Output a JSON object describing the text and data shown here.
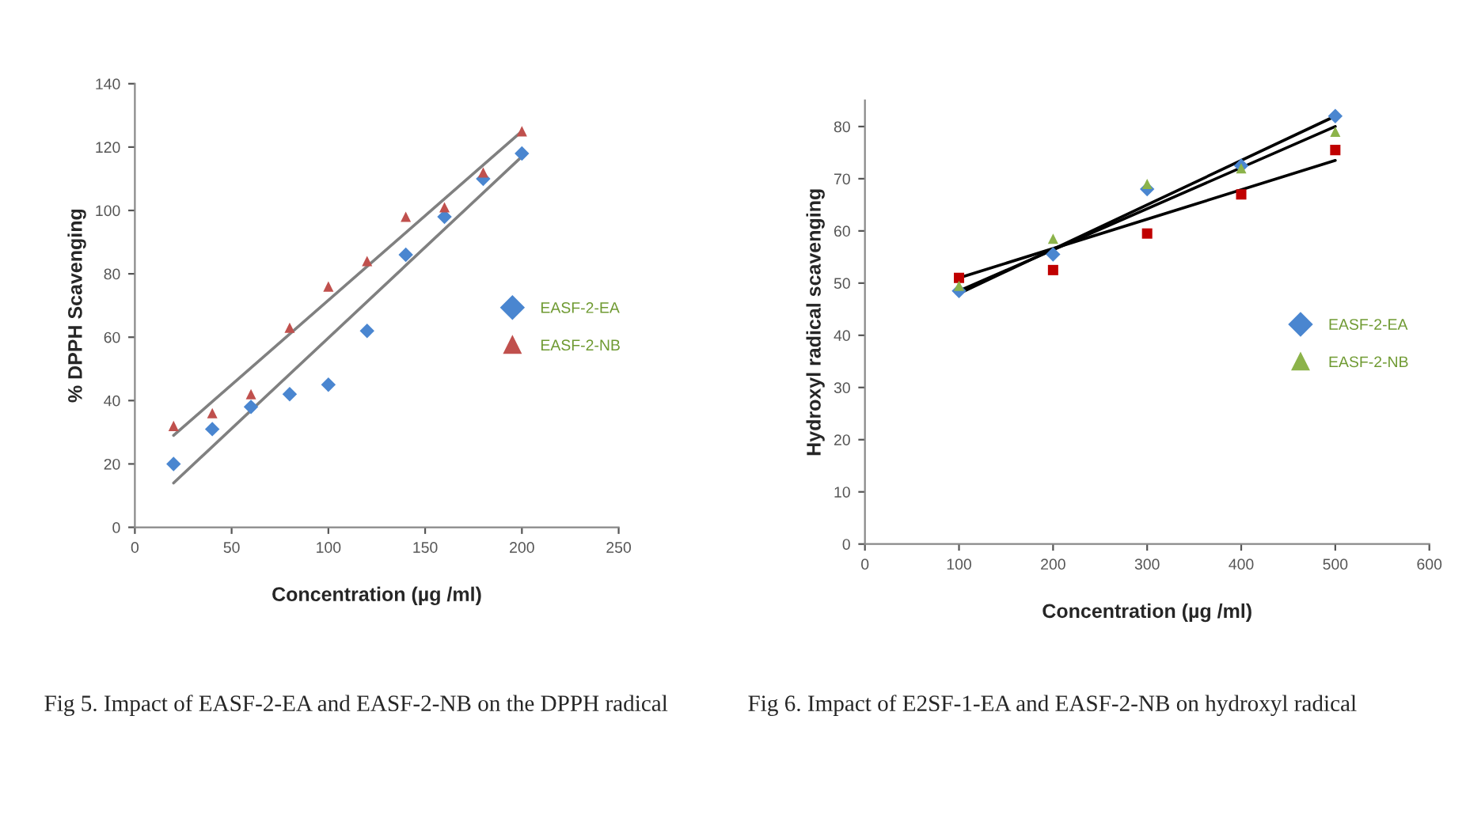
{
  "chart_data": [
    {
      "type": "scatter",
      "xlabel": "Concentration (µg /ml)",
      "ylabel": "% DPPH Scavenging",
      "xlim": [
        0,
        250
      ],
      "xticks": [
        0,
        50,
        100,
        150,
        200,
        250
      ],
      "ylim": [
        0,
        140
      ],
      "yticks": [
        0,
        20,
        40,
        60,
        80,
        100,
        120,
        140
      ],
      "grid": false,
      "legend": "right",
      "series": [
        {
          "name": "EASF-2-EA",
          "color": "#4a86d0",
          "marker": "diamond",
          "x": [
            20,
            40,
            60,
            80,
            100,
            120,
            140,
            160,
            180,
            200
          ],
          "values": [
            20,
            31,
            38,
            42,
            45,
            62,
            86,
            98,
            110,
            118
          ]
        },
        {
          "name": "EASF-2-NB",
          "color": "#c0504d",
          "marker": "triangle",
          "x": [
            20,
            40,
            60,
            80,
            100,
            120,
            140,
            160,
            180,
            200
          ],
          "values": [
            32,
            36,
            42,
            63,
            76,
            84,
            98,
            101,
            112,
            125
          ]
        },
        {
          "type": "line",
          "color": "#808080",
          "marker": "none",
          "x": [
            20,
            200
          ],
          "values": [
            14,
            117
          ]
        },
        {
          "type": "line",
          "color": "#808080",
          "marker": "none",
          "x": [
            20,
            200
          ],
          "values": [
            29,
            125
          ]
        }
      ],
      "annotations": [
        "Fig 5. Impact of EASF-2-EA and EASF-2-NB on the DPPH radical"
      ]
    },
    {
      "type": "scatter",
      "xlabel": "Concentration (µg /ml)",
      "ylabel": "Hydroxyl radical scavenging",
      "xlim": [
        0,
        600
      ],
      "xticks": [
        0,
        100,
        200,
        300,
        400,
        500,
        600
      ],
      "ylim": [
        0,
        85
      ],
      "yticks": [
        0,
        10,
        20,
        30,
        40,
        50,
        60,
        70,
        80
      ],
      "grid": false,
      "legend": "right",
      "series": [
        {
          "name": "EASF-2-EA",
          "color": "#4a86d0",
          "marker": "diamond",
          "x": [
            100,
            200,
            300,
            400,
            500
          ],
          "values": [
            48.5,
            55.5,
            68,
            72.5,
            82
          ]
        },
        {
          "color": "#c00000",
          "marker": "square",
          "x": [
            100,
            200,
            300,
            400,
            500
          ],
          "values": [
            51,
            52.5,
            59.5,
            67,
            75.5
          ]
        },
        {
          "name": "EASF-2-NB",
          "color": "#8cb34a",
          "marker": "triangle",
          "x": [
            100,
            200,
            300,
            400,
            500
          ],
          "values": [
            49.5,
            58.5,
            69,
            72,
            79
          ]
        },
        {
          "type": "line",
          "color": "#000000",
          "marker": "none",
          "x": [
            100,
            500
          ],
          "values": [
            48,
            82
          ]
        },
        {
          "type": "line",
          "color": "#000000",
          "marker": "none",
          "x": [
            100,
            500
          ],
          "values": [
            48.5,
            80
          ]
        },
        {
          "type": "line",
          "color": "#000000",
          "marker": "none",
          "x": [
            100,
            500
          ],
          "values": [
            51,
            73.5
          ]
        }
      ],
      "annotations": [
        "Fig 6. Impact of E2SF-1-EA and EASF-2-NB on hydroxyl radical"
      ]
    }
  ]
}
